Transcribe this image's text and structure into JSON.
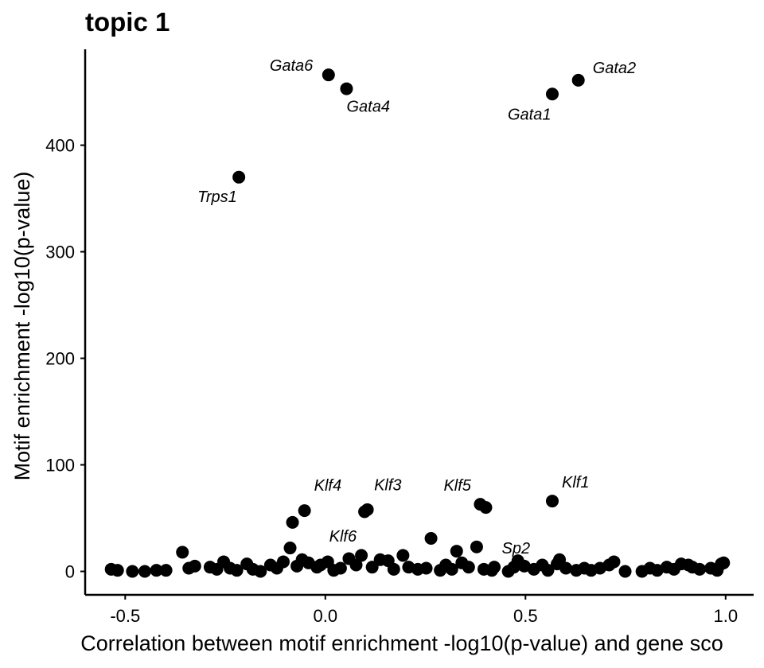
{
  "chart_data": {
    "type": "scatter",
    "title": "topic 1",
    "xlabel": "Correlation between motif enrichment -log10(p-value) and gene sco",
    "ylabel": "Motif enrichment -log10(p-value)",
    "xlim": [
      -0.6,
      1.07
    ],
    "ylim": [
      -22,
      490
    ],
    "xticks": [
      -0.5,
      0.0,
      0.5,
      1.0
    ],
    "xtick_labels": [
      "-0.5",
      "0.0",
      "0.5",
      "1.0"
    ],
    "yticks": [
      0,
      100,
      200,
      300,
      400
    ],
    "ytick_labels": [
      "0",
      "100",
      "200",
      "300",
      "400"
    ],
    "grid": false,
    "legend": "none",
    "point_color": "#000000",
    "labeled_points": [
      {
        "label": "Gata6",
        "x": 0.008,
        "y": 466
      },
      {
        "label": "Gata4",
        "x": 0.053,
        "y": 453
      },
      {
        "label": "Gata1",
        "x": 0.567,
        "y": 448
      },
      {
        "label": "Gata2",
        "x": 0.632,
        "y": 461
      },
      {
        "label": "Trps1",
        "x": -0.216,
        "y": 370
      },
      {
        "label": "Klf4",
        "x": -0.052,
        "y": 57
      },
      {
        "label": "Klf6",
        "x": 0.105,
        "y": 58
      },
      {
        "label": "Klf3",
        "x": 0.098,
        "y": 56
      },
      {
        "label": "Klf5",
        "x": 0.387,
        "y": 63
      },
      {
        "label": "Sp2",
        "x": 0.401,
        "y": 60
      },
      {
        "label": "Klf1",
        "x": 0.567,
        "y": 66
      }
    ],
    "points": [
      {
        "x": 0.008,
        "y": 466
      },
      {
        "x": 0.053,
        "y": 453
      },
      {
        "x": 0.567,
        "y": 448
      },
      {
        "x": 0.632,
        "y": 461
      },
      {
        "x": -0.216,
        "y": 370
      },
      {
        "x": -0.052,
        "y": 57
      },
      {
        "x": 0.105,
        "y": 58
      },
      {
        "x": 0.098,
        "y": 56
      },
      {
        "x": 0.387,
        "y": 63
      },
      {
        "x": 0.401,
        "y": 60
      },
      {
        "x": 0.567,
        "y": 66
      },
      {
        "x": -0.082,
        "y": 46
      },
      {
        "x": 0.264,
        "y": 31
      },
      {
        "x": 0.378,
        "y": 23
      },
      {
        "x": -0.357,
        "y": 18
      },
      {
        "x": -0.088,
        "y": 22
      },
      {
        "x": 0.194,
        "y": 15
      },
      {
        "x": 0.328,
        "y": 19
      },
      {
        "x": 0.09,
        "y": 15
      },
      {
        "x": 0.059,
        "y": 12
      },
      {
        "x": 0.137,
        "y": 11
      },
      {
        "x": 0.157,
        "y": 10
      },
      {
        "x": -0.058,
        "y": 11
      },
      {
        "x": -0.105,
        "y": 9
      },
      {
        "x": 0.481,
        "y": 10
      },
      {
        "x": 0.585,
        "y": 11
      },
      {
        "x": 0.721,
        "y": 9
      },
      {
        "x": -0.254,
        "y": 9
      },
      {
        "x": -0.196,
        "y": 7
      },
      {
        "x": 0.006,
        "y": 9
      },
      {
        "x": 0.341,
        "y": 8
      },
      {
        "x": 0.422,
        "y": 4
      },
      {
        "x": 0.542,
        "y": 6
      },
      {
        "x": 0.889,
        "y": 7
      },
      {
        "x": 0.989,
        "y": 7
      },
      {
        "x": 0.907,
        "y": 6
      },
      {
        "x": 0.853,
        "y": 4
      },
      {
        "x": 0.963,
        "y": 3
      },
      {
        "x": 0.935,
        "y": 2
      },
      {
        "x": -0.535,
        "y": 2
      },
      {
        "x": -0.519,
        "y": 1
      },
      {
        "x": -0.482,
        "y": 0
      },
      {
        "x": -0.451,
        "y": 0
      },
      {
        "x": -0.422,
        "y": 1
      },
      {
        "x": -0.398,
        "y": 1
      },
      {
        "x": -0.341,
        "y": 3
      },
      {
        "x": -0.326,
        "y": 5
      },
      {
        "x": -0.288,
        "y": 4
      },
      {
        "x": -0.271,
        "y": 2
      },
      {
        "x": -0.238,
        "y": 3
      },
      {
        "x": -0.221,
        "y": 1
      },
      {
        "x": -0.181,
        "y": 2
      },
      {
        "x": -0.162,
        "y": 0
      },
      {
        "x": -0.137,
        "y": 6
      },
      {
        "x": -0.121,
        "y": 3
      },
      {
        "x": -0.071,
        "y": 5
      },
      {
        "x": -0.042,
        "y": 8
      },
      {
        "x": -0.021,
        "y": 4
      },
      {
        "x": -0.012,
        "y": 6
      },
      {
        "x": 0.021,
        "y": 1
      },
      {
        "x": 0.038,
        "y": 3
      },
      {
        "x": 0.077,
        "y": 6
      },
      {
        "x": 0.117,
        "y": 4
      },
      {
        "x": 0.171,
        "y": 2
      },
      {
        "x": 0.208,
        "y": 4
      },
      {
        "x": 0.231,
        "y": 2
      },
      {
        "x": 0.252,
        "y": 3
      },
      {
        "x": 0.287,
        "y": 1
      },
      {
        "x": 0.301,
        "y": 6
      },
      {
        "x": 0.316,
        "y": 2
      },
      {
        "x": 0.358,
        "y": 4
      },
      {
        "x": 0.396,
        "y": 2
      },
      {
        "x": 0.416,
        "y": 1
      },
      {
        "x": 0.457,
        "y": 0
      },
      {
        "x": 0.471,
        "y": 4
      },
      {
        "x": 0.497,
        "y": 5
      },
      {
        "x": 0.521,
        "y": 2
      },
      {
        "x": 0.556,
        "y": 1
      },
      {
        "x": 0.579,
        "y": 7
      },
      {
        "x": 0.601,
        "y": 3
      },
      {
        "x": 0.627,
        "y": 1
      },
      {
        "x": 0.647,
        "y": 3
      },
      {
        "x": 0.664,
        "y": 1
      },
      {
        "x": 0.686,
        "y": 3
      },
      {
        "x": 0.709,
        "y": 6
      },
      {
        "x": 0.749,
        "y": 0
      },
      {
        "x": 0.791,
        "y": 0
      },
      {
        "x": 0.811,
        "y": 3
      },
      {
        "x": 0.829,
        "y": 1
      },
      {
        "x": 0.871,
        "y": 2
      },
      {
        "x": 0.917,
        "y": 4
      },
      {
        "x": 0.979,
        "y": 1
      },
      {
        "x": 0.995,
        "y": 8
      }
    ]
  }
}
